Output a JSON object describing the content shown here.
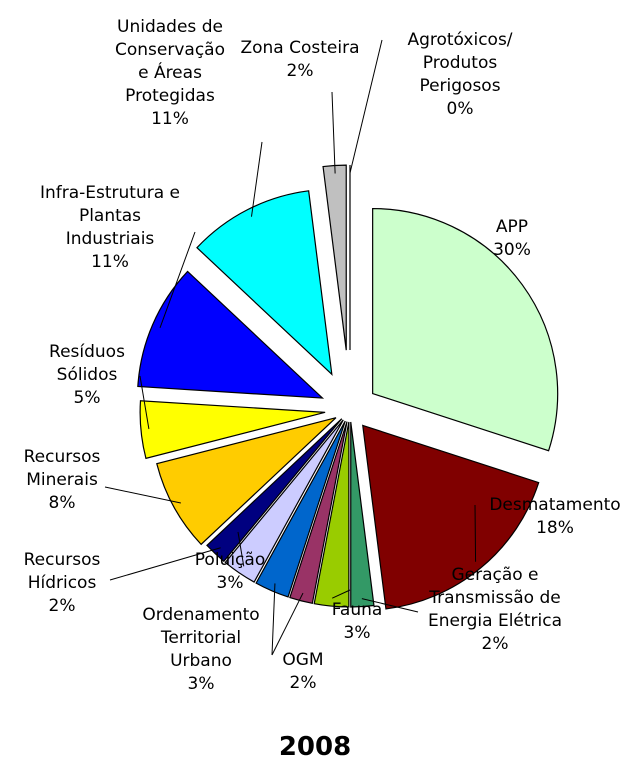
{
  "chart_data": {
    "type": "pie",
    "title": "2008",
    "categories": [
      "APP",
      "Desmatamento",
      "Geração e Transmissão de Energia Elétrica",
      "Fauna",
      "OGM",
      "Ordenamento Territorial Urbano",
      "Poluição",
      "Recursos Hídricos",
      "Recursos Minerais",
      "Resíduos Sólidos",
      "Infra-Estrutura e Plantas Industriais",
      "Unidades de Conservação e Áreas Protegidas",
      "Zona Costeira",
      "Agrotóxicos/ Produtos Perigosos"
    ],
    "values": [
      30,
      18,
      2,
      3,
      2,
      3,
      3,
      2,
      8,
      5,
      11,
      11,
      2,
      0
    ],
    "value_labels": [
      "30%",
      "18%",
      "2%",
      "3%",
      "2%",
      "3%",
      "3%",
      "2%",
      "8%",
      "5%",
      "11%",
      "11%",
      "2%",
      "0%"
    ],
    "colors": [
      "#ccffcc",
      "#800000",
      "#339966",
      "#99cc00",
      "#993366",
      "#0066cc",
      "#ccccff",
      "#000080",
      "#ffcc00",
      "#ffff00",
      "#0000ff",
      "#00ffff",
      "#c0c0c0",
      "#000000"
    ]
  }
}
